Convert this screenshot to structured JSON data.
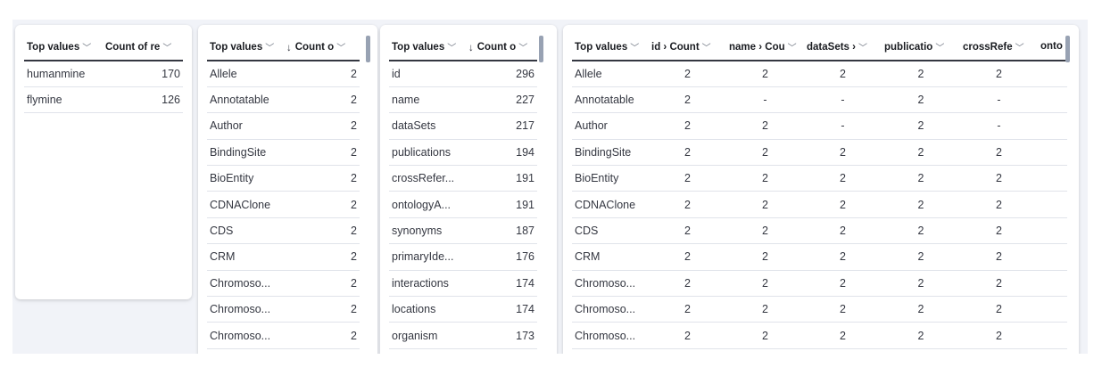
{
  "panel1": {
    "headers": [
      "Top values",
      "Count of re"
    ],
    "rows": [
      [
        "humanmine",
        "170"
      ],
      [
        "flymine",
        "126"
      ]
    ]
  },
  "panel2": {
    "headers": [
      "Top values",
      "Count o"
    ],
    "sort_arrow": "↓",
    "rows": [
      [
        "Allele",
        "2"
      ],
      [
        "Annotatable",
        "2"
      ],
      [
        "Author",
        "2"
      ],
      [
        "BindingSite",
        "2"
      ],
      [
        "BioEntity",
        "2"
      ],
      [
        "CDNAClone",
        "2"
      ],
      [
        "CDS",
        "2"
      ],
      [
        "CRM",
        "2"
      ],
      [
        "Chromoso...",
        "2"
      ],
      [
        "Chromoso...",
        "2"
      ],
      [
        "Chromoso...",
        "2"
      ],
      [
        "",
        ""
      ]
    ]
  },
  "panel3": {
    "headers": [
      "Top values",
      "Count o"
    ],
    "sort_arrow": "↓",
    "rows": [
      [
        "id",
        "296"
      ],
      [
        "name",
        "227"
      ],
      [
        "dataSets",
        "217"
      ],
      [
        "publications",
        "194"
      ],
      [
        "crossRefer...",
        "191"
      ],
      [
        "ontologyA...",
        "191"
      ],
      [
        "synonyms",
        "187"
      ],
      [
        "primaryIde...",
        "176"
      ],
      [
        "interactions",
        "174"
      ],
      [
        "locations",
        "174"
      ],
      [
        "organism",
        "173"
      ],
      [
        "",
        ""
      ]
    ]
  },
  "panel4": {
    "headers": [
      "Top values",
      "id › Count",
      "name › Cou",
      "dataSets ›",
      "publicatio",
      "crossRefe",
      "onto"
    ],
    "rows": [
      [
        "Allele",
        "2",
        "2",
        "2",
        "2",
        "2",
        ""
      ],
      [
        "Annotatable",
        "2",
        "-",
        "-",
        "2",
        "-",
        ""
      ],
      [
        "Author",
        "2",
        "2",
        "-",
        "2",
        "-",
        ""
      ],
      [
        "BindingSite",
        "2",
        "2",
        "2",
        "2",
        "2",
        ""
      ],
      [
        "BioEntity",
        "2",
        "2",
        "2",
        "2",
        "2",
        ""
      ],
      [
        "CDNAClone",
        "2",
        "2",
        "2",
        "2",
        "2",
        ""
      ],
      [
        "CDS",
        "2",
        "2",
        "2",
        "2",
        "2",
        ""
      ],
      [
        "CRM",
        "2",
        "2",
        "2",
        "2",
        "2",
        ""
      ],
      [
        "Chromoso...",
        "2",
        "2",
        "2",
        "2",
        "2",
        ""
      ],
      [
        "Chromoso...",
        "2",
        "2",
        "2",
        "2",
        "2",
        ""
      ],
      [
        "Chromoso...",
        "2",
        "2",
        "2",
        "2",
        "2",
        ""
      ],
      [
        "",
        "",
        "",
        "",
        "",
        "",
        ""
      ]
    ]
  }
}
